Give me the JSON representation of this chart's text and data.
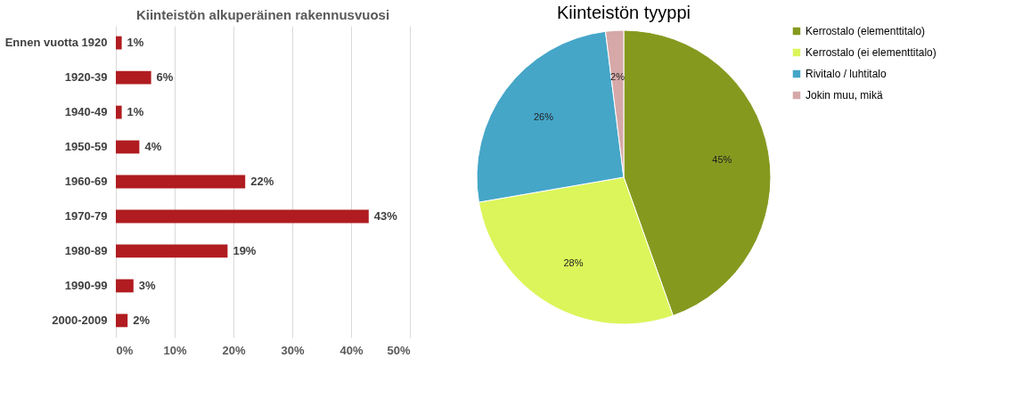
{
  "chart_data": [
    {
      "type": "bar",
      "orientation": "horizontal",
      "title": "Kiinteistön alkuperäinen rakennusvuosi",
      "categories": [
        "Ennen vuotta 1920",
        "1920-39",
        "1940-49",
        "1950-59",
        "1960-69",
        "1970-79",
        "1980-89",
        "1990-99",
        "2000-2009"
      ],
      "values": [
        1,
        6,
        1,
        4,
        22,
        43,
        19,
        3,
        2
      ],
      "value_labels": [
        "1%",
        "6%",
        "1%",
        "4%",
        "22%",
        "43%",
        "19%",
        "3%",
        "2%"
      ],
      "color": "#b01c20",
      "xlim": [
        0,
        50
      ],
      "xticks": [
        {
          "value": 0,
          "label": "0%"
        },
        {
          "value": 10,
          "label": "10%"
        },
        {
          "value": 20,
          "label": "20%"
        },
        {
          "value": 30,
          "label": "30%"
        },
        {
          "value": 40,
          "label": "40%"
        },
        {
          "value": 50,
          "label": "50%"
        }
      ],
      "grid": "x"
    },
    {
      "type": "pie",
      "title": "Kiinteistön tyyppi",
      "categories": [
        "Kerrostalo (elementtitalo)",
        "Kerrostalo (ei elementtitalo)",
        "Rivitalo / luhtitalo",
        "Jokin muu, mikä"
      ],
      "values": [
        45,
        28,
        26,
        2
      ],
      "value_labels": [
        "45%",
        "28%",
        "26%",
        "2%"
      ],
      "colors": [
        "#86991f",
        "#dcf55a",
        "#45a6c8",
        "#d6a8a8"
      ],
      "legend": "right"
    }
  ]
}
